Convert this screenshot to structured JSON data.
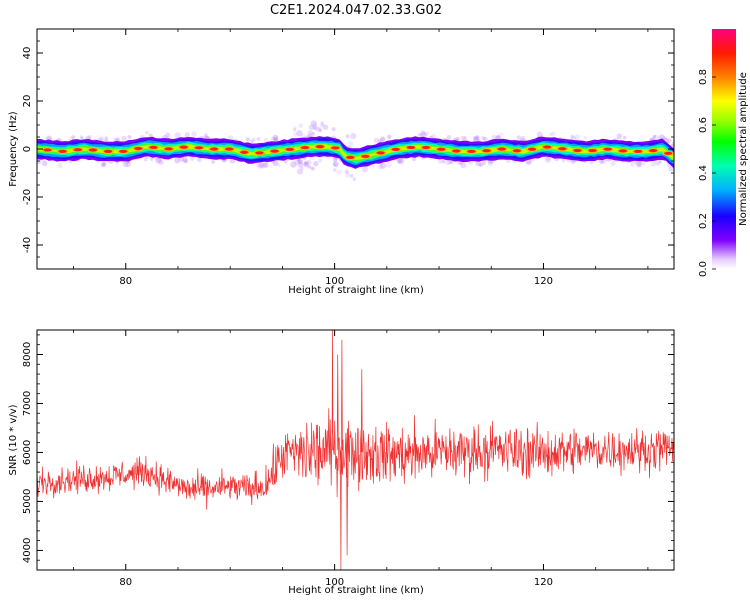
{
  "figure": {
    "title": "C2E1.2024.047.02.33.G02"
  },
  "chart_data": [
    {
      "type": "heatmap",
      "xlabel": "Height of straight line (km)",
      "ylabel": "Frequency (Hz)",
      "xlim": [
        71.5,
        132.5
      ],
      "ylim": [
        -50,
        50
      ],
      "x_ticks": [
        80,
        100,
        120
      ],
      "y_ticks": [
        -40,
        -20,
        0,
        20,
        40
      ],
      "ridge": {
        "x": [
          71.5,
          74,
          76,
          78,
          80,
          82,
          84,
          86,
          88,
          90,
          92,
          94,
          96,
          98,
          99.5,
          100.5,
          101,
          102,
          104,
          106,
          108,
          110,
          112,
          114,
          116,
          118,
          120,
          122,
          124,
          126,
          128,
          130,
          131.5,
          132.5
        ],
        "frequency": [
          0,
          -1,
          0,
          -1,
          -1,
          1,
          0,
          1,
          0,
          0,
          -2,
          -1,
          0,
          1,
          1,
          0,
          -3,
          -4,
          -2,
          0,
          1,
          0,
          -1,
          -1,
          0,
          -1,
          1,
          0,
          -1,
          0,
          -1,
          -1,
          0,
          -4
        ]
      },
      "colorbar": {
        "label": "Normalized spectral amplitude",
        "range": [
          0,
          1
        ],
        "ticks": [
          0.0,
          0.2,
          0.4,
          0.6,
          0.8
        ],
        "tick_labels": [
          "0.0",
          "0.2",
          "0.4",
          "0.6",
          "0.8"
        ]
      }
    },
    {
      "type": "line",
      "xlabel": "Height of straight line (km)",
      "ylabel": "SNR (10 * v/v)",
      "xlim": [
        71.5,
        132.5
      ],
      "ylim": [
        3600,
        8500
      ],
      "x_ticks": [
        80,
        100,
        120
      ],
      "y_ticks": [
        4000,
        5000,
        6000,
        7000,
        8000
      ],
      "color": "#f03030",
      "trend": {
        "x": [
          71.5,
          75,
          78,
          80,
          82,
          84,
          86,
          88,
          90,
          92,
          93.5,
          95,
          98,
          100,
          103,
          106,
          110,
          115,
          120,
          125,
          130,
          132.5
        ],
        "y": [
          5400,
          5450,
          5500,
          5550,
          5600,
          5400,
          5250,
          5250,
          5300,
          5250,
          5350,
          5950,
          6000,
          6050,
          6000,
          5950,
          6000,
          6050,
          6000,
          6050,
          6050,
          6100
        ]
      },
      "noise_amplitude": {
        "x": [
          71.5,
          93,
          95,
          98,
          103,
          110,
          132.5
        ],
        "y": [
          230,
          260,
          420,
          650,
          520,
          480,
          330
        ]
      },
      "spikes": [
        {
          "x": 99.8,
          "y": 8500
        },
        {
          "x": 100.6,
          "y": 3600
        },
        {
          "x": 100.3,
          "y": 8000
        },
        {
          "x": 100.7,
          "y": 8300
        },
        {
          "x": 101.2,
          "y": 3900
        },
        {
          "x": 102.6,
          "y": 7700
        }
      ]
    }
  ]
}
